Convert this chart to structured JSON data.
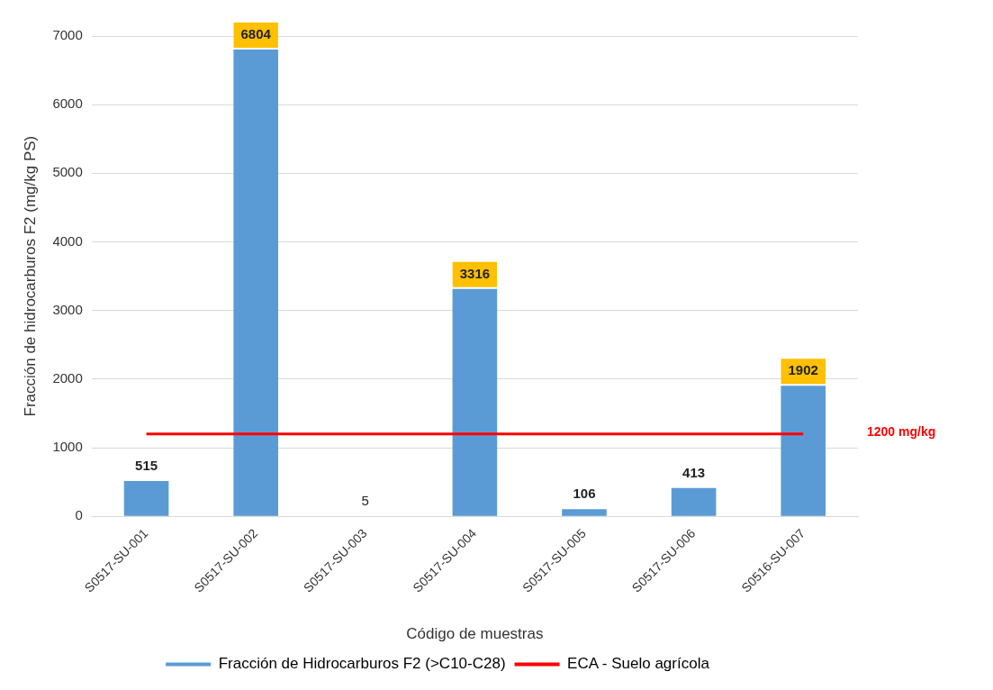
{
  "chart_data": {
    "type": "bar",
    "xlabel": "Código de muestras",
    "ylabel": "Fracción de hidrocarburos F2 (mg/kg PS)",
    "categories": [
      "S0517-SU-001",
      "S0517-SU-002",
      "S0517-SU-003",
      "S0517-SU-004",
      "S0517-SU-005",
      "S0517-SU-006",
      "S0516-SU-007"
    ],
    "series": [
      {
        "name": "Fracción de Hidrocarburos F2 (>C10-C28)",
        "color": "#5b9bd5",
        "values": [
          515,
          6804,
          5,
          3316,
          106,
          413,
          1902
        ],
        "value_labels": [
          "515",
          "6804",
          "5",
          "3316",
          "106",
          "413",
          "1902"
        ]
      },
      {
        "name": "ECA - Suelo agrícola",
        "type": "line",
        "color": "#ff0000",
        "values": [
          1200,
          1200,
          1200,
          1200,
          1200,
          1200,
          1200
        ]
      }
    ],
    "annotations": [
      "1200 mg/kg"
    ],
    "ylim": [
      0,
      7000
    ],
    "yticks": [
      0,
      1000,
      2000,
      3000,
      4000,
      5000,
      6000,
      7000
    ],
    "grid": "y",
    "legend": "bottom",
    "marker": "none"
  }
}
